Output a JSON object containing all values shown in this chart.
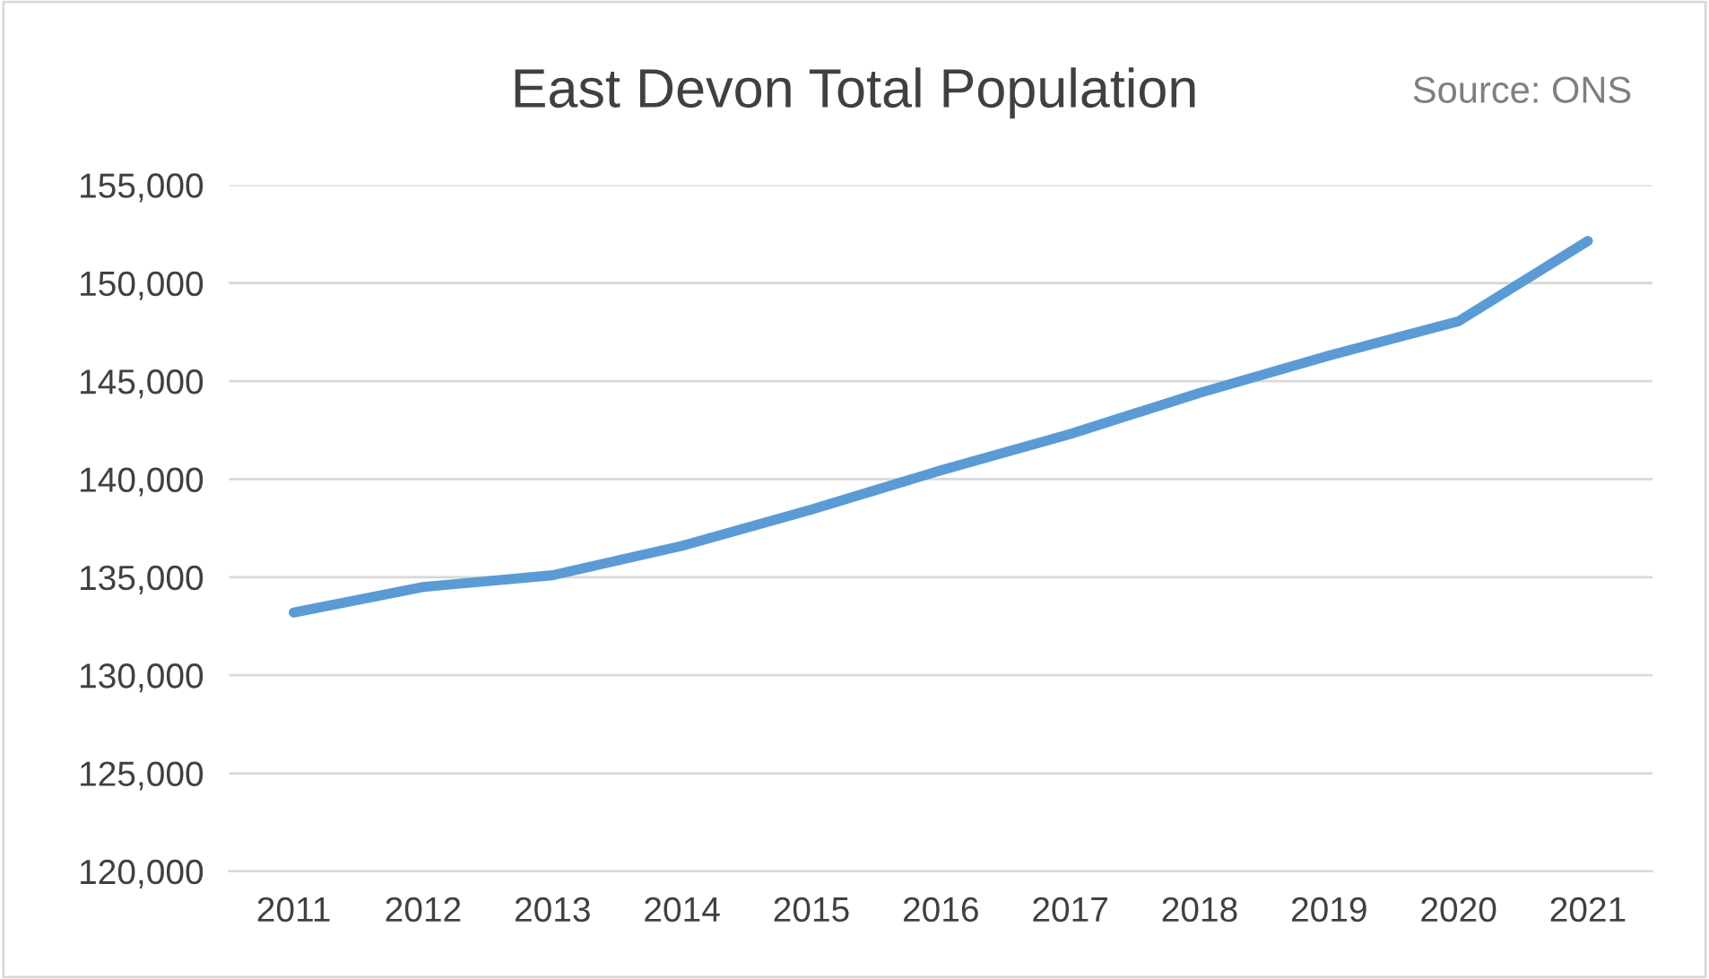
{
  "chart_data": {
    "type": "line",
    "title": "East Devon Total Population",
    "annotations": [
      "Source: ONS"
    ],
    "categories": [
      "2011",
      "2012",
      "2013",
      "2014",
      "2015",
      "2016",
      "2017",
      "2018",
      "2019",
      "2020",
      "2021"
    ],
    "series": [
      {
        "color": "#5b9bd5",
        "values": [
          133200,
          134500,
          135100,
          136600,
          138450,
          140450,
          142300,
          144400,
          146300,
          148050,
          152150
        ]
      }
    ],
    "ylim": [
      120000,
      155000
    ],
    "yticks": [
      {
        "value": 120000,
        "label": "120,000"
      },
      {
        "value": 125000,
        "label": "125,000"
      },
      {
        "value": 130000,
        "label": "130,000"
      },
      {
        "value": 135000,
        "label": "135,000"
      },
      {
        "value": 140000,
        "label": "140,000"
      },
      {
        "value": 145000,
        "label": "145,000"
      },
      {
        "value": 150000,
        "label": "150,000"
      },
      {
        "value": 155000,
        "label": "155,000"
      }
    ],
    "grid": "y",
    "marker": "none",
    "line_style": "solid"
  }
}
